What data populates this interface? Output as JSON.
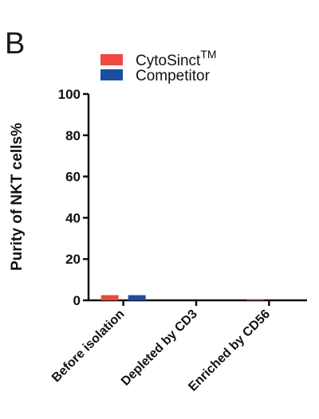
{
  "panel_label": "B",
  "chart_data": {
    "type": "bar",
    "categories": [
      "Before isolation",
      "Depleted by CD3",
      "Enriched by CD56"
    ],
    "series": [
      {
        "name": "CytoSinct",
        "name_superscript": "TM",
        "color": "#f0473f",
        "values": [
          2.5,
          0,
          0.3
        ]
      },
      {
        "name": "Competitor",
        "color": "#1c4ea1",
        "values": [
          2.5,
          0,
          0
        ]
      }
    ],
    "ylabel": "Purity of  NKT cells%",
    "ylim": [
      0,
      100
    ],
    "yticks": [
      0,
      20,
      40,
      60,
      80,
      100
    ],
    "legend_position": "top",
    "grid": false
  }
}
